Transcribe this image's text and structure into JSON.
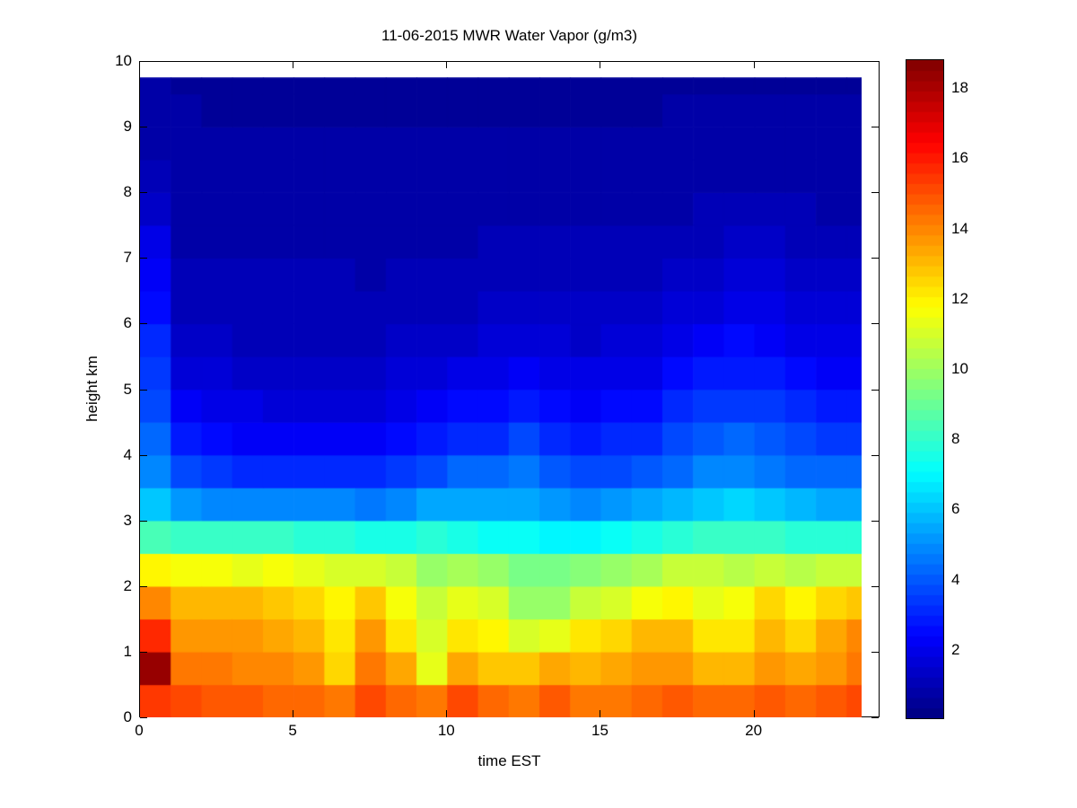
{
  "figure": {
    "background": "#FFFFFF",
    "title": "11-06-2015 MWR Water Vapor (g/m3)",
    "xlabel": "time EST",
    "ylabel": "height km",
    "axis_color": "#000000",
    "darkest_blue": "#000090",
    "darkest_red": "#870000"
  },
  "axes": {
    "x_ticks": [
      0,
      5,
      10,
      15,
      20
    ],
    "y_ticks": [
      0,
      1,
      2,
      3,
      4,
      5,
      6,
      7,
      8,
      9,
      10
    ],
    "x_range": [
      0,
      24.1
    ],
    "y_range": [
      0,
      10
    ]
  },
  "colorbar": {
    "ticks": [
      2,
      4,
      6,
      8,
      10,
      12,
      14,
      16,
      18
    ],
    "colormap": "jet",
    "levels": 64,
    "clim": [
      0.05,
      18.8
    ]
  },
  "chart_data": {
    "type": "heatmap",
    "title": "11-06-2015 MWR Water Vapor (g/m3)",
    "xlabel": "time EST",
    "ylabel": "height km",
    "units": "g/m3",
    "x_hours": [
      0,
      1,
      2,
      3,
      4,
      5,
      6,
      7,
      8,
      9,
      10,
      11,
      12,
      13,
      14,
      15,
      16,
      17,
      18,
      19,
      20,
      21,
      22,
      23
    ],
    "x_cell_hours": 1,
    "x_data_end": 23.5,
    "y_km_step": 0.5,
    "y_data_top_km": 9.75,
    "heights_km_bottom_edges": [
      0,
      0.5,
      1,
      1.5,
      2,
      2.5,
      3,
      3.5,
      4,
      4.5,
      5,
      5.5,
      6,
      6.5,
      7,
      7.5,
      8,
      8.5,
      9,
      9.5
    ],
    "values_by_hour_bottom_to_top": [
      [
        15.5,
        18.4,
        15.8,
        14.0,
        12.0,
        8.5,
        6.0,
        5.0,
        4.3,
        3.8,
        3.4,
        3.0,
        2.6,
        2.3,
        2.0,
        1.5,
        1.1,
        0.9,
        0.8,
        0.7
      ],
      [
        15.0,
        14.3,
        13.8,
        13.2,
        11.6,
        8.0,
        5.2,
        3.8,
        2.8,
        2.2,
        1.8,
        1.4,
        1.2,
        1.0,
        0.9,
        0.8,
        0.8,
        0.7,
        0.7,
        0.6
      ],
      [
        14.8,
        14.2,
        13.7,
        13.0,
        11.6,
        8.2,
        5.0,
        3.5,
        2.6,
        2.0,
        1.6,
        1.3,
        1.1,
        1.0,
        0.9,
        0.8,
        0.7,
        0.7,
        0.6,
        0.6
      ],
      [
        14.8,
        14.0,
        13.6,
        13.0,
        11.4,
        8.0,
        4.8,
        3.2,
        2.3,
        1.9,
        1.5,
        1.2,
        1.1,
        1.0,
        0.9,
        0.8,
        0.7,
        0.7,
        0.6,
        0.6
      ],
      [
        14.6,
        14.0,
        13.5,
        12.8,
        11.5,
        8.0,
        4.8,
        3.0,
        2.2,
        1.8,
        1.5,
        1.2,
        1.1,
        1.0,
        0.9,
        0.8,
        0.7,
        0.7,
        0.6,
        0.6
      ],
      [
        14.6,
        13.8,
        13.2,
        12.6,
        11.3,
        7.8,
        4.8,
        3.2,
        2.3,
        1.8,
        1.5,
        1.2,
        1.1,
        1.0,
        0.9,
        0.8,
        0.7,
        0.7,
        0.6,
        0.6
      ],
      [
        14.4,
        12.6,
        12.2,
        12.0,
        11.0,
        7.8,
        4.8,
        3.2,
        2.3,
        1.8,
        1.5,
        1.2,
        1.1,
        1.0,
        0.9,
        0.8,
        0.7,
        0.7,
        0.6,
        0.6
      ],
      [
        15.0,
        14.2,
        13.8,
        12.8,
        11.0,
        7.5,
        4.6,
        3.0,
        2.2,
        1.8,
        1.5,
        1.2,
        1.0,
        0.9,
        0.9,
        0.8,
        0.7,
        0.7,
        0.6,
        0.6
      ],
      [
        14.6,
        13.3,
        12.2,
        11.6,
        10.6,
        7.5,
        4.8,
        3.3,
        2.4,
        1.9,
        1.6,
        1.3,
        1.1,
        1.0,
        0.9,
        0.8,
        0.7,
        0.7,
        0.6,
        0.6
      ],
      [
        14.2,
        11.4,
        10.9,
        10.8,
        10.0,
        7.8,
        5.4,
        3.8,
        2.8,
        2.2,
        1.8,
        1.4,
        1.2,
        1.0,
        0.9,
        0.8,
        0.7,
        0.7,
        0.6,
        0.6
      ],
      [
        15.0,
        13.3,
        12.2,
        11.4,
        10.2,
        7.5,
        5.6,
        4.2,
        3.0,
        2.4,
        1.9,
        1.5,
        1.2,
        1.1,
        0.9,
        0.8,
        0.7,
        0.7,
        0.6,
        0.6
      ],
      [
        14.6,
        12.8,
        11.8,
        11.0,
        9.8,
        7.2,
        5.4,
        4.2,
        3.2,
        2.5,
        2.0,
        1.6,
        1.3,
        1.1,
        1.0,
        0.8,
        0.7,
        0.7,
        0.6,
        0.6
      ],
      [
        14.2,
        12.9,
        10.9,
        10.0,
        9.4,
        7.2,
        5.6,
        4.5,
        3.6,
        2.9,
        2.3,
        1.8,
        1.5,
        1.2,
        1.0,
        0.9,
        0.8,
        0.7,
        0.6,
        0.6
      ],
      [
        14.8,
        13.3,
        11.3,
        10.0,
        9.2,
        7.0,
        5.2,
        4.0,
        3.2,
        2.6,
        2.1,
        1.7,
        1.4,
        1.2,
        1.0,
        0.9,
        0.8,
        0.7,
        0.6,
        0.6
      ],
      [
        14.4,
        13.0,
        12.1,
        10.6,
        9.5,
        7.0,
        5.0,
        3.6,
        2.8,
        2.3,
        1.9,
        1.5,
        1.3,
        1.1,
        1.0,
        0.9,
        0.8,
        0.7,
        0.6,
        0.6
      ],
      [
        14.4,
        13.4,
        12.4,
        11.0,
        9.8,
        7.2,
        5.2,
        3.8,
        3.0,
        2.4,
        2.0,
        1.6,
        1.3,
        1.1,
        1.0,
        0.9,
        0.8,
        0.7,
        0.6,
        0.6
      ],
      [
        14.6,
        13.6,
        13.0,
        11.6,
        10.2,
        7.5,
        5.4,
        4.0,
        3.2,
        2.6,
        2.1,
        1.7,
        1.4,
        1.2,
        1.0,
        0.9,
        0.8,
        0.7,
        0.6,
        0.6
      ],
      [
        14.8,
        13.8,
        13.2,
        12.0,
        10.6,
        7.8,
        5.8,
        4.4,
        3.6,
        3.0,
        2.4,
        2.0,
        1.6,
        1.3,
        1.1,
        0.9,
        0.8,
        0.7,
        0.7,
        0.6
      ],
      [
        14.6,
        13.2,
        12.2,
        11.4,
        10.6,
        8.2,
        6.2,
        4.8,
        4.0,
        3.3,
        2.7,
        2.2,
        1.8,
        1.5,
        1.2,
        1.0,
        0.8,
        0.7,
        0.7,
        0.6
      ],
      [
        14.6,
        13.0,
        12.2,
        11.6,
        10.4,
        8.2,
        6.4,
        5.0,
        4.2,
        3.5,
        2.9,
        2.4,
        2.0,
        1.7,
        1.4,
        1.1,
        0.9,
        0.8,
        0.7,
        0.6
      ],
      [
        14.8,
        13.6,
        13.2,
        12.6,
        10.8,
        8.0,
        6.0,
        4.7,
        3.9,
        3.3,
        2.7,
        2.2,
        1.9,
        1.6,
        1.3,
        1.0,
        0.9,
        0.8,
        0.7,
        0.6
      ],
      [
        14.6,
        13.4,
        12.6,
        12.0,
        10.5,
        7.8,
        5.8,
        4.4,
        3.6,
        3.0,
        2.5,
        2.0,
        1.7,
        1.4,
        1.2,
        1.0,
        0.8,
        0.7,
        0.7,
        0.6
      ],
      [
        14.8,
        13.8,
        13.4,
        12.4,
        10.6,
        7.8,
        5.6,
        4.2,
        3.4,
        2.8,
        2.3,
        1.9,
        1.6,
        1.3,
        1.1,
        0.9,
        0.8,
        0.7,
        0.7,
        0.6
      ],
      [
        15.0,
        14.2,
        14.0,
        12.8,
        10.8,
        7.8,
        5.6,
        4.2,
        3.4,
        2.8,
        2.3,
        1.9,
        1.6,
        1.3,
        1.1,
        0.9,
        0.8,
        0.7,
        0.7,
        0.6
      ]
    ]
  }
}
